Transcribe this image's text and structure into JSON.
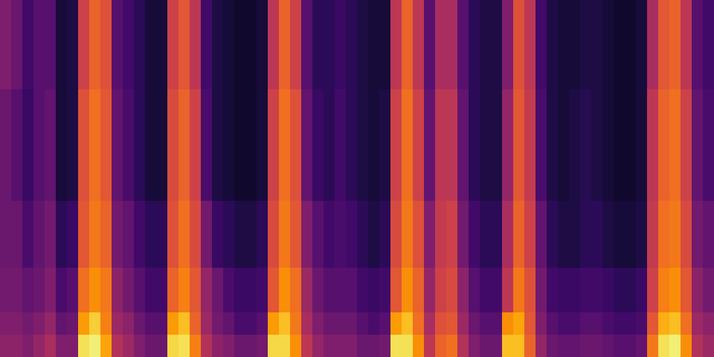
{
  "chart_data": {
    "type": "heatmap",
    "color": "inferno",
    "tick_labels": false,
    "zlim": [
      0,
      1
    ],
    "cells": [
      [
        0.35,
        0.3,
        0.2,
        0.25,
        0.25,
        0.1,
        0.12,
        0.55,
        0.65,
        0.6,
        0.25,
        0.2,
        0.15,
        0.1,
        0.1,
        0.55,
        0.62,
        0.5,
        0.2,
        0.12,
        0.1,
        0.08,
        0.08,
        0.1,
        0.5,
        0.65,
        0.55,
        0.25,
        0.15,
        0.15,
        0.18,
        0.15,
        0.12,
        0.1,
        0.1,
        0.5,
        0.65,
        0.5,
        0.25,
        0.45,
        0.45,
        0.25,
        0.15,
        0.12,
        0.12,
        0.35,
        0.6,
        0.5,
        0.2,
        0.12,
        0.1,
        0.1,
        0.12,
        0.12,
        0.1,
        0.08,
        0.08,
        0.1,
        0.45,
        0.62,
        0.65,
        0.5,
        0.25,
        0.2
      ],
      [
        0.35,
        0.3,
        0.2,
        0.25,
        0.25,
        0.1,
        0.12,
        0.55,
        0.65,
        0.6,
        0.25,
        0.2,
        0.15,
        0.1,
        0.1,
        0.55,
        0.62,
        0.5,
        0.2,
        0.12,
        0.1,
        0.08,
        0.08,
        0.1,
        0.5,
        0.65,
        0.55,
        0.25,
        0.15,
        0.15,
        0.18,
        0.15,
        0.12,
        0.1,
        0.1,
        0.5,
        0.65,
        0.5,
        0.25,
        0.45,
        0.45,
        0.25,
        0.15,
        0.12,
        0.12,
        0.35,
        0.6,
        0.5,
        0.2,
        0.12,
        0.1,
        0.1,
        0.12,
        0.12,
        0.1,
        0.08,
        0.08,
        0.1,
        0.45,
        0.62,
        0.65,
        0.5,
        0.25,
        0.2
      ],
      [
        0.35,
        0.3,
        0.2,
        0.25,
        0.25,
        0.1,
        0.12,
        0.55,
        0.65,
        0.6,
        0.25,
        0.2,
        0.15,
        0.1,
        0.1,
        0.55,
        0.62,
        0.5,
        0.2,
        0.12,
        0.1,
        0.08,
        0.08,
        0.1,
        0.5,
        0.65,
        0.55,
        0.25,
        0.15,
        0.15,
        0.18,
        0.15,
        0.12,
        0.1,
        0.1,
        0.5,
        0.65,
        0.5,
        0.25,
        0.45,
        0.45,
        0.25,
        0.15,
        0.12,
        0.12,
        0.35,
        0.6,
        0.5,
        0.2,
        0.12,
        0.1,
        0.1,
        0.12,
        0.12,
        0.1,
        0.08,
        0.08,
        0.1,
        0.45,
        0.62,
        0.65,
        0.5,
        0.25,
        0.2
      ],
      [
        0.35,
        0.3,
        0.2,
        0.25,
        0.25,
        0.1,
        0.12,
        0.55,
        0.65,
        0.6,
        0.25,
        0.2,
        0.15,
        0.1,
        0.1,
        0.55,
        0.62,
        0.5,
        0.2,
        0.12,
        0.1,
        0.08,
        0.08,
        0.1,
        0.5,
        0.65,
        0.55,
        0.25,
        0.15,
        0.15,
        0.18,
        0.15,
        0.12,
        0.1,
        0.1,
        0.5,
        0.65,
        0.5,
        0.25,
        0.45,
        0.45,
        0.25,
        0.15,
        0.12,
        0.12,
        0.35,
        0.6,
        0.5,
        0.2,
        0.12,
        0.1,
        0.1,
        0.12,
        0.12,
        0.1,
        0.08,
        0.08,
        0.1,
        0.45,
        0.62,
        0.65,
        0.5,
        0.25,
        0.2
      ],
      [
        0.3,
        0.25,
        0.18,
        0.25,
        0.28,
        0.1,
        0.12,
        0.6,
        0.68,
        0.62,
        0.28,
        0.22,
        0.15,
        0.1,
        0.1,
        0.58,
        0.65,
        0.55,
        0.22,
        0.12,
        0.1,
        0.08,
        0.08,
        0.1,
        0.55,
        0.68,
        0.6,
        0.28,
        0.18,
        0.15,
        0.2,
        0.15,
        0.12,
        0.1,
        0.12,
        0.55,
        0.68,
        0.55,
        0.28,
        0.5,
        0.5,
        0.28,
        0.15,
        0.12,
        0.12,
        0.4,
        0.62,
        0.52,
        0.22,
        0.12,
        0.1,
        0.12,
        0.14,
        0.12,
        0.1,
        0.08,
        0.08,
        0.1,
        0.5,
        0.65,
        0.68,
        0.55,
        0.28,
        0.22
      ],
      [
        0.3,
        0.25,
        0.18,
        0.25,
        0.28,
        0.1,
        0.12,
        0.6,
        0.68,
        0.62,
        0.28,
        0.22,
        0.15,
        0.1,
        0.1,
        0.58,
        0.65,
        0.55,
        0.22,
        0.12,
        0.1,
        0.08,
        0.08,
        0.1,
        0.55,
        0.68,
        0.6,
        0.28,
        0.18,
        0.15,
        0.2,
        0.15,
        0.12,
        0.1,
        0.12,
        0.55,
        0.68,
        0.55,
        0.28,
        0.5,
        0.5,
        0.28,
        0.15,
        0.12,
        0.12,
        0.4,
        0.62,
        0.52,
        0.22,
        0.12,
        0.1,
        0.12,
        0.14,
        0.12,
        0.1,
        0.08,
        0.08,
        0.1,
        0.5,
        0.65,
        0.68,
        0.55,
        0.28,
        0.22
      ],
      [
        0.3,
        0.25,
        0.18,
        0.25,
        0.28,
        0.1,
        0.12,
        0.6,
        0.68,
        0.62,
        0.28,
        0.22,
        0.15,
        0.1,
        0.1,
        0.58,
        0.65,
        0.55,
        0.22,
        0.12,
        0.1,
        0.08,
        0.08,
        0.1,
        0.55,
        0.68,
        0.6,
        0.28,
        0.18,
        0.15,
        0.2,
        0.15,
        0.12,
        0.1,
        0.12,
        0.55,
        0.68,
        0.55,
        0.28,
        0.5,
        0.5,
        0.28,
        0.15,
        0.12,
        0.12,
        0.4,
        0.62,
        0.52,
        0.22,
        0.12,
        0.1,
        0.12,
        0.14,
        0.12,
        0.1,
        0.08,
        0.08,
        0.1,
        0.5,
        0.65,
        0.68,
        0.55,
        0.28,
        0.22
      ],
      [
        0.3,
        0.25,
        0.18,
        0.25,
        0.28,
        0.1,
        0.12,
        0.6,
        0.68,
        0.62,
        0.28,
        0.22,
        0.15,
        0.1,
        0.1,
        0.58,
        0.65,
        0.55,
        0.22,
        0.12,
        0.1,
        0.08,
        0.08,
        0.1,
        0.55,
        0.68,
        0.6,
        0.28,
        0.18,
        0.15,
        0.2,
        0.15,
        0.12,
        0.1,
        0.12,
        0.55,
        0.68,
        0.55,
        0.28,
        0.5,
        0.5,
        0.28,
        0.15,
        0.12,
        0.12,
        0.4,
        0.62,
        0.52,
        0.22,
        0.12,
        0.1,
        0.12,
        0.14,
        0.12,
        0.1,
        0.08,
        0.08,
        0.1,
        0.5,
        0.65,
        0.68,
        0.55,
        0.28,
        0.22
      ],
      [
        0.3,
        0.25,
        0.18,
        0.25,
        0.28,
        0.1,
        0.12,
        0.6,
        0.68,
        0.62,
        0.28,
        0.22,
        0.15,
        0.1,
        0.1,
        0.58,
        0.65,
        0.55,
        0.22,
        0.12,
        0.1,
        0.08,
        0.08,
        0.1,
        0.55,
        0.68,
        0.6,
        0.28,
        0.18,
        0.15,
        0.2,
        0.15,
        0.12,
        0.1,
        0.12,
        0.55,
        0.68,
        0.55,
        0.28,
        0.5,
        0.5,
        0.28,
        0.15,
        0.12,
        0.12,
        0.4,
        0.62,
        0.52,
        0.22,
        0.12,
        0.1,
        0.12,
        0.14,
        0.12,
        0.1,
        0.08,
        0.08,
        0.1,
        0.5,
        0.65,
        0.68,
        0.55,
        0.28,
        0.22
      ],
      [
        0.3,
        0.3,
        0.22,
        0.28,
        0.32,
        0.15,
        0.18,
        0.62,
        0.7,
        0.65,
        0.32,
        0.28,
        0.2,
        0.15,
        0.15,
        0.6,
        0.68,
        0.58,
        0.32,
        0.18,
        0.15,
        0.12,
        0.12,
        0.15,
        0.58,
        0.7,
        0.62,
        0.35,
        0.25,
        0.2,
        0.22,
        0.2,
        0.15,
        0.12,
        0.15,
        0.58,
        0.7,
        0.6,
        0.35,
        0.52,
        0.55,
        0.32,
        0.2,
        0.15,
        0.15,
        0.45,
        0.65,
        0.55,
        0.28,
        0.15,
        0.12,
        0.12,
        0.15,
        0.15,
        0.12,
        0.1,
        0.1,
        0.12,
        0.52,
        0.68,
        0.7,
        0.58,
        0.32,
        0.28
      ],
      [
        0.3,
        0.3,
        0.22,
        0.28,
        0.32,
        0.15,
        0.18,
        0.62,
        0.7,
        0.65,
        0.32,
        0.28,
        0.2,
        0.15,
        0.15,
        0.6,
        0.68,
        0.58,
        0.32,
        0.18,
        0.15,
        0.12,
        0.12,
        0.15,
        0.58,
        0.7,
        0.62,
        0.35,
        0.25,
        0.2,
        0.22,
        0.2,
        0.15,
        0.12,
        0.15,
        0.58,
        0.7,
        0.6,
        0.35,
        0.52,
        0.55,
        0.32,
        0.2,
        0.15,
        0.15,
        0.45,
        0.65,
        0.55,
        0.28,
        0.15,
        0.12,
        0.12,
        0.15,
        0.15,
        0.12,
        0.1,
        0.1,
        0.12,
        0.52,
        0.68,
        0.7,
        0.58,
        0.32,
        0.28
      ],
      [
        0.3,
        0.3,
        0.22,
        0.28,
        0.32,
        0.15,
        0.18,
        0.62,
        0.7,
        0.65,
        0.32,
        0.28,
        0.2,
        0.15,
        0.15,
        0.6,
        0.68,
        0.58,
        0.32,
        0.18,
        0.15,
        0.12,
        0.12,
        0.15,
        0.58,
        0.7,
        0.62,
        0.35,
        0.25,
        0.2,
        0.22,
        0.2,
        0.15,
        0.12,
        0.15,
        0.58,
        0.7,
        0.6,
        0.35,
        0.52,
        0.55,
        0.32,
        0.2,
        0.15,
        0.15,
        0.45,
        0.65,
        0.55,
        0.28,
        0.15,
        0.12,
        0.12,
        0.15,
        0.15,
        0.12,
        0.1,
        0.1,
        0.12,
        0.52,
        0.68,
        0.7,
        0.58,
        0.32,
        0.28
      ],
      [
        0.32,
        0.32,
        0.28,
        0.3,
        0.35,
        0.22,
        0.25,
        0.68,
        0.75,
        0.7,
        0.38,
        0.32,
        0.25,
        0.2,
        0.2,
        0.65,
        0.72,
        0.62,
        0.4,
        0.3,
        0.22,
        0.18,
        0.18,
        0.2,
        0.62,
        0.75,
        0.68,
        0.42,
        0.3,
        0.25,
        0.25,
        0.25,
        0.2,
        0.18,
        0.2,
        0.62,
        0.75,
        0.65,
        0.4,
        0.55,
        0.58,
        0.38,
        0.25,
        0.2,
        0.2,
        0.5,
        0.7,
        0.6,
        0.32,
        0.2,
        0.18,
        0.18,
        0.2,
        0.2,
        0.18,
        0.15,
        0.15,
        0.18,
        0.55,
        0.72,
        0.75,
        0.62,
        0.38,
        0.32
      ],
      [
        0.32,
        0.32,
        0.28,
        0.3,
        0.35,
        0.22,
        0.25,
        0.68,
        0.75,
        0.7,
        0.38,
        0.32,
        0.25,
        0.2,
        0.2,
        0.65,
        0.72,
        0.62,
        0.4,
        0.3,
        0.22,
        0.18,
        0.18,
        0.2,
        0.62,
        0.75,
        0.68,
        0.42,
        0.3,
        0.25,
        0.25,
        0.25,
        0.2,
        0.18,
        0.2,
        0.62,
        0.75,
        0.65,
        0.4,
        0.55,
        0.58,
        0.38,
        0.25,
        0.2,
        0.2,
        0.5,
        0.7,
        0.6,
        0.32,
        0.2,
        0.18,
        0.18,
        0.2,
        0.2,
        0.18,
        0.15,
        0.15,
        0.18,
        0.55,
        0.72,
        0.75,
        0.62,
        0.38,
        0.32
      ],
      [
        0.35,
        0.35,
        0.32,
        0.35,
        0.4,
        0.28,
        0.3,
        0.78,
        0.88,
        0.72,
        0.42,
        0.38,
        0.3,
        0.25,
        0.25,
        0.78,
        0.85,
        0.65,
        0.42,
        0.32,
        0.28,
        0.22,
        0.22,
        0.25,
        0.78,
        0.85,
        0.7,
        0.45,
        0.35,
        0.3,
        0.3,
        0.3,
        0.25,
        0.22,
        0.25,
        0.78,
        0.85,
        0.68,
        0.45,
        0.6,
        0.62,
        0.42,
        0.3,
        0.25,
        0.25,
        0.75,
        0.8,
        0.62,
        0.35,
        0.25,
        0.22,
        0.22,
        0.25,
        0.25,
        0.22,
        0.2,
        0.2,
        0.22,
        0.62,
        0.82,
        0.85,
        0.68,
        0.42,
        0.38
      ],
      [
        0.38,
        0.38,
        0.35,
        0.4,
        0.45,
        0.35,
        0.35,
        0.92,
        0.95,
        0.8,
        0.48,
        0.42,
        0.35,
        0.3,
        0.3,
        0.9,
        0.92,
        0.72,
        0.48,
        0.38,
        0.35,
        0.3,
        0.3,
        0.32,
        0.9,
        0.9,
        0.75,
        0.5,
        0.4,
        0.35,
        0.35,
        0.35,
        0.3,
        0.3,
        0.32,
        0.92,
        0.92,
        0.75,
        0.5,
        0.65,
        0.68,
        0.48,
        0.35,
        0.3,
        0.3,
        0.85,
        0.85,
        0.65,
        0.4,
        0.3,
        0.28,
        0.28,
        0.3,
        0.3,
        0.28,
        0.25,
        0.25,
        0.28,
        0.7,
        0.92,
        0.95,
        0.75,
        0.48,
        0.42
      ]
    ]
  }
}
